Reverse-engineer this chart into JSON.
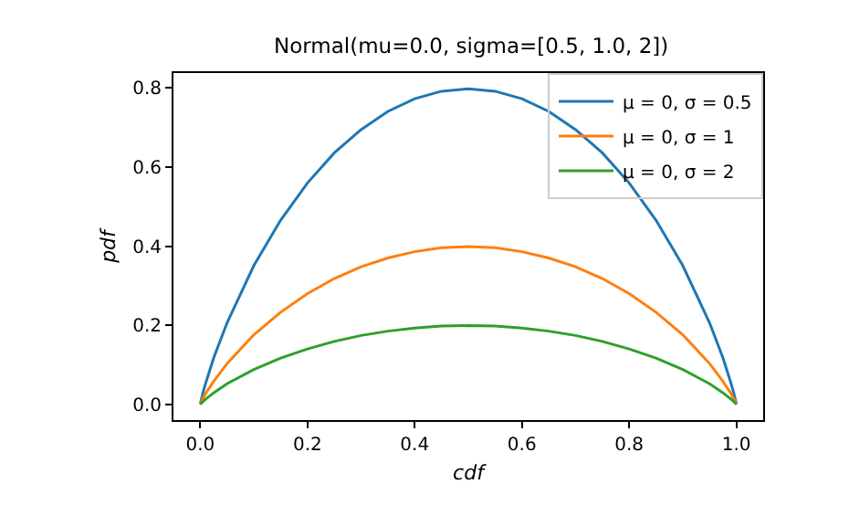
{
  "chart_data": {
    "type": "line",
    "title": "Normal(mu=0.0, sigma=[0.5, 1.0, 2])",
    "xlabel": "cdf",
    "ylabel": "pdf",
    "x": [
      0,
      0.005,
      0.01,
      0.025,
      0.05,
      0.1,
      0.15,
      0.2,
      0.25,
      0.3,
      0.35,
      0.4,
      0.45,
      0.5,
      0.55,
      0.6,
      0.65,
      0.7,
      0.75,
      0.8,
      0.85,
      0.9,
      0.95,
      0.975,
      0.99,
      0.995,
      1
    ],
    "series": [
      {
        "name": "μ = 0, σ = 0.5",
        "color": "#1f77b4",
        "values": [
          0,
          0.029,
          0.053,
          0.117,
          0.206,
          0.351,
          0.466,
          0.56,
          0.636,
          0.695,
          0.741,
          0.773,
          0.792,
          0.798,
          0.792,
          0.773,
          0.741,
          0.695,
          0.636,
          0.56,
          0.466,
          0.351,
          0.206,
          0.117,
          0.053,
          0.029,
          0
        ]
      },
      {
        "name": "μ = 0, σ = 1",
        "color": "#ff7f0e",
        "values": [
          0,
          0.015,
          0.027,
          0.058,
          0.103,
          0.176,
          0.233,
          0.28,
          0.318,
          0.348,
          0.37,
          0.386,
          0.396,
          0.399,
          0.396,
          0.386,
          0.37,
          0.348,
          0.318,
          0.28,
          0.233,
          0.176,
          0.103,
          0.058,
          0.027,
          0.015,
          0
        ]
      },
      {
        "name": "μ = 0, σ = 2",
        "color": "#2ca02c",
        "values": [
          0,
          0.007,
          0.013,
          0.029,
          0.052,
          0.088,
          0.117,
          0.14,
          0.159,
          0.174,
          0.185,
          0.193,
          0.198,
          0.199,
          0.198,
          0.193,
          0.185,
          0.174,
          0.159,
          0.14,
          0.117,
          0.088,
          0.052,
          0.029,
          0.013,
          0.007,
          0
        ]
      }
    ],
    "xlim": [
      -0.05,
      1.05
    ],
    "xticks": [
      {
        "value": 0,
        "label": "0.0"
      },
      {
        "value": 0.2,
        "label": "0.2"
      },
      {
        "value": 0.4,
        "label": "0.4"
      },
      {
        "value": 0.6,
        "label": "0.6"
      },
      {
        "value": 0.8,
        "label": "0.8"
      },
      {
        "value": 1,
        "label": "1.0"
      }
    ],
    "ylim": [
      -0.04,
      0.838
    ],
    "yticks": [
      {
        "value": 0,
        "label": "0.0"
      },
      {
        "value": 0.2,
        "label": "0.2"
      },
      {
        "value": 0.4,
        "label": "0.4"
      },
      {
        "value": 0.6,
        "label": "0.6"
      },
      {
        "value": 0.8,
        "label": "0.8"
      }
    ],
    "grid": false,
    "legend": "top right",
    "marker": "none",
    "line_style": "solid"
  }
}
